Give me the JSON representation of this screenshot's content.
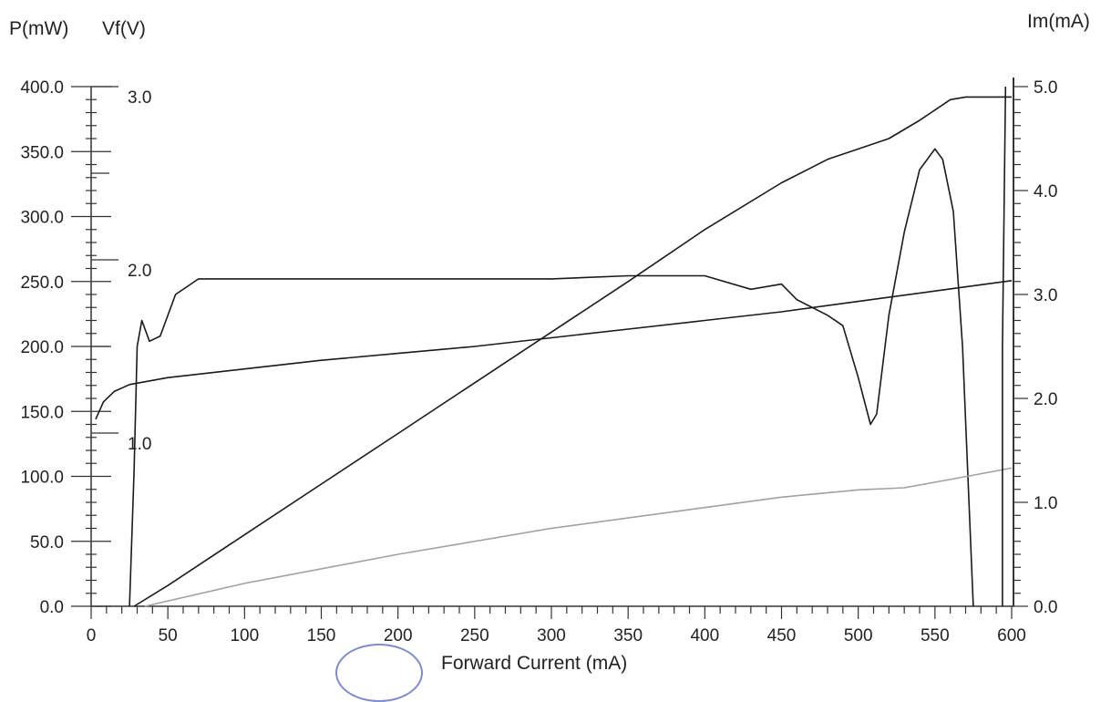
{
  "chart_data": {
    "type": "line",
    "title": "",
    "xlabel": "Forward Current (mA)",
    "axes": {
      "power": {
        "label": "P(mW)",
        "range": [
          0,
          400
        ],
        "ticks": [
          "0.0",
          "50.0",
          "100.0",
          "150.0",
          "200.0",
          "250.0",
          "300.0",
          "350.0",
          "400.0"
        ]
      },
      "voltage": {
        "label": "Vf(V)",
        "range": [
          0,
          3.0
        ],
        "ticks": [
          "1.0",
          "2.0",
          "3.0"
        ]
      },
      "monitor": {
        "label": "Im(mA)",
        "range": [
          0,
          5.0
        ],
        "ticks": [
          "0.0",
          "1.0",
          "2.0",
          "3.0",
          "4.0",
          "5.0"
        ]
      }
    },
    "xlim": [
      0,
      600
    ],
    "x_ticks": [
      "0",
      "50",
      "100",
      "150",
      "200",
      "250",
      "300",
      "350",
      "400",
      "450",
      "500",
      "550",
      "600"
    ],
    "series": [
      {
        "axis": "power",
        "color": "#1a1a1a",
        "points": [
          [
            28,
            0
          ],
          [
            50,
            16
          ],
          [
            100,
            55
          ],
          [
            150,
            94
          ],
          [
            200,
            133
          ],
          [
            250,
            172
          ],
          [
            300,
            211
          ],
          [
            350,
            250
          ],
          [
            400,
            290
          ],
          [
            450,
            326
          ],
          [
            480,
            344
          ],
          [
            500,
            352
          ],
          [
            520,
            360
          ],
          [
            540,
            374
          ],
          [
            560,
            390
          ],
          [
            570,
            392
          ],
          [
            600,
            392
          ]
        ]
      },
      {
        "axis": "voltage",
        "color": "#1a1a1a",
        "points": [
          [
            3,
            1.08
          ],
          [
            8,
            1.18
          ],
          [
            15,
            1.24
          ],
          [
            25,
            1.28
          ],
          [
            50,
            1.32
          ],
          [
            100,
            1.37
          ],
          [
            150,
            1.42
          ],
          [
            200,
            1.46
          ],
          [
            250,
            1.5
          ],
          [
            300,
            1.55
          ],
          [
            350,
            1.6
          ],
          [
            400,
            1.65
          ],
          [
            450,
            1.7
          ],
          [
            500,
            1.76
          ],
          [
            550,
            1.82
          ],
          [
            600,
            1.88
          ]
        ]
      },
      {
        "axis": "monitor",
        "color": "#1a1a1a",
        "points": [
          [
            25,
            0.0
          ],
          [
            28,
            1.3
          ],
          [
            30,
            2.5
          ],
          [
            33,
            2.75
          ],
          [
            38,
            2.55
          ],
          [
            45,
            2.6
          ],
          [
            55,
            3.0
          ],
          [
            70,
            3.15
          ],
          [
            100,
            3.15
          ],
          [
            150,
            3.15
          ],
          [
            200,
            3.15
          ],
          [
            250,
            3.15
          ],
          [
            300,
            3.15
          ],
          [
            350,
            3.18
          ],
          [
            400,
            3.18
          ],
          [
            430,
            3.05
          ],
          [
            450,
            3.1
          ],
          [
            460,
            2.95
          ],
          [
            480,
            2.8
          ],
          [
            490,
            2.7
          ],
          [
            500,
            2.2
          ],
          [
            508,
            1.75
          ],
          [
            512,
            1.85
          ],
          [
            520,
            2.8
          ],
          [
            530,
            3.6
          ],
          [
            540,
            4.2
          ],
          [
            550,
            4.4
          ],
          [
            555,
            4.3
          ],
          [
            562,
            3.8
          ],
          [
            568,
            2.5
          ],
          [
            575,
            0.0
          ]
        ]
      },
      {
        "axis": "monitor",
        "color": "#9aa69a",
        "points": [
          [
            35,
            0.0
          ],
          [
            100,
            0.22
          ],
          [
            200,
            0.5
          ],
          [
            300,
            0.75
          ],
          [
            400,
            0.95
          ],
          [
            450,
            1.05
          ],
          [
            500,
            1.12
          ],
          [
            530,
            1.14
          ],
          [
            560,
            1.22
          ],
          [
            600,
            1.33
          ]
        ]
      },
      {
        "axis": "monitor",
        "color": "#1a1a1a",
        "points": [
          [
            594,
            0.0
          ],
          [
            594,
            2.5
          ],
          [
            596,
            5.0
          ]
        ]
      }
    ]
  }
}
